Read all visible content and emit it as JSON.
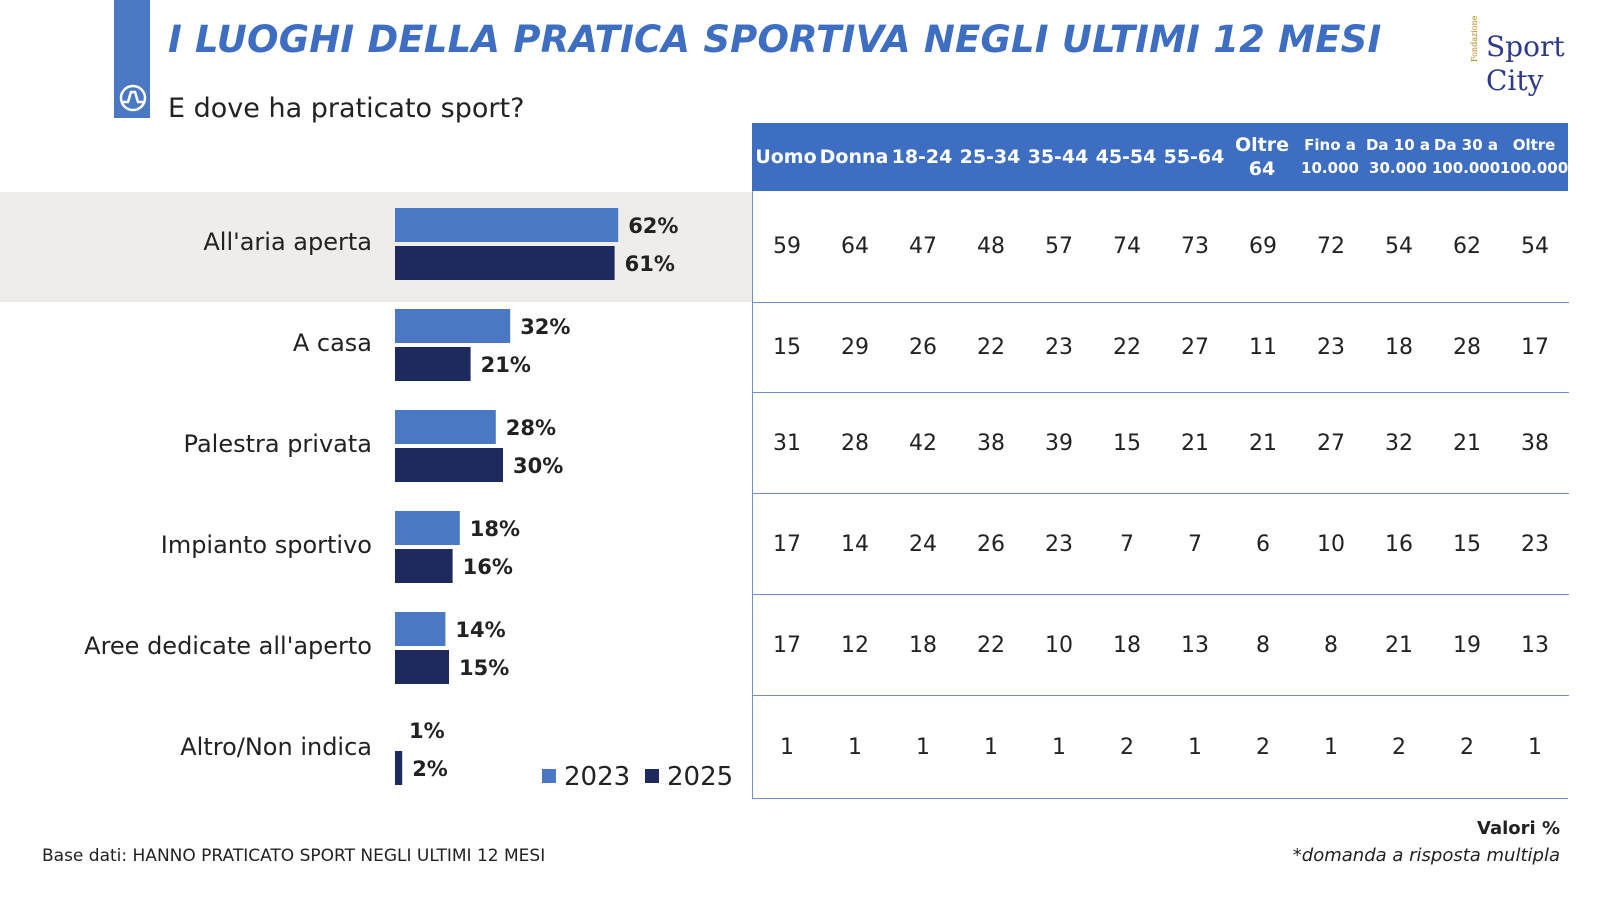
{
  "header": {
    "title": "I LUOGHI DELLA PRATICA SPORTIVA NEGLI ULTIMI 12 MESI",
    "subtitle": "E dove ha praticato sport?",
    "logo": {
      "fondazione": "Fondazione",
      "line1": "Sport",
      "line2": "City"
    }
  },
  "colors": {
    "accent": "#3d6ec1",
    "series_2023": "#4a78c2",
    "series_2025": "#1e2a5e",
    "highlight": "#efedea"
  },
  "chart_data": {
    "type": "bar",
    "orientation": "horizontal",
    "categories": [
      "All'aria aperta",
      "A casa",
      "Palestra privata",
      "Impianto sportivo",
      "Aree dedicate all'aperto",
      "Altro/Non indica"
    ],
    "series": [
      {
        "name": "2023",
        "values": [
          62,
          32,
          28,
          18,
          14,
          1
        ],
        "labels": [
          "62%",
          "32%",
          "28%",
          "18%",
          "14%",
          "1%"
        ]
      },
      {
        "name": "2025",
        "values": [
          61,
          21,
          30,
          16,
          15,
          2
        ],
        "labels": [
          "61%",
          "21%",
          "30%",
          "16%",
          "15%",
          "2%"
        ]
      }
    ],
    "xlim": [
      0,
      100
    ],
    "legend": "bottom-right"
  },
  "table": {
    "columns": [
      "Uomo",
      "Donna",
      "18-24",
      "25-34",
      "35-44",
      "45-54",
      "55-64",
      "Oltre\n64",
      "Fino a\n10.000",
      "Da 10 a\n30.000",
      "Da 30 a\n100.000",
      "Oltre\n100.000"
    ],
    "rows": [
      [
        "59",
        "64",
        "47",
        "48",
        "57",
        "74",
        "73",
        "69",
        "72",
        "54",
        "62",
        "54"
      ],
      [
        "15",
        "29",
        "26",
        "22",
        "23",
        "22",
        "27",
        "11",
        "23",
        "18",
        "28",
        "17"
      ],
      [
        "31",
        "28",
        "42",
        "38",
        "39",
        "15",
        "21",
        "21",
        "27",
        "32",
        "21",
        "38"
      ],
      [
        "17",
        "14",
        "24",
        "26",
        "23",
        "7",
        "7",
        "6",
        "10",
        "16",
        "15",
        "23"
      ],
      [
        "17",
        "12",
        "18",
        "22",
        "10",
        "18",
        "13",
        "8",
        "8",
        "21",
        "19",
        "13"
      ],
      [
        "1",
        "1",
        "1",
        "1",
        "1",
        "2",
        "1",
        "2",
        "1",
        "2",
        "2",
        "1"
      ]
    ]
  },
  "footer": {
    "base": "Base dati: HANNO PRATICATO SPORT NEGLI ULTIMI 12 MESI",
    "valori": "Valori %",
    "note": "*domanda a risposta multipla"
  }
}
